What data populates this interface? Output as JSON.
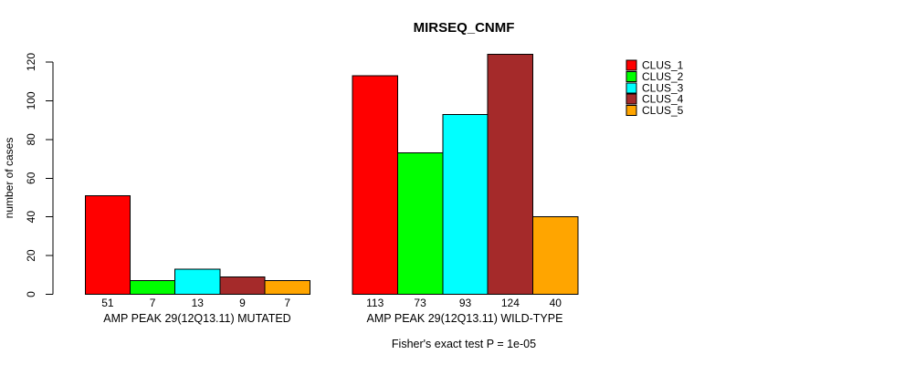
{
  "title": "MIRSEQ_CNMF",
  "chart_data": {
    "type": "bar",
    "title": "MIRSEQ_CNMF",
    "ylabel": "number of cases",
    "xlabel": "",
    "ylim": [
      0,
      120
    ],
    "yticks": [
      0,
      20,
      40,
      60,
      80,
      100,
      120
    ],
    "grid": false,
    "legend_position": "right",
    "categories": [
      "AMP PEAK 29(12Q13.11) MUTATED",
      "AMP PEAK 29(12Q13.11) WILD-TYPE"
    ],
    "series": [
      {
        "name": "CLUS_1",
        "color": "#ff0000",
        "values": [
          51,
          113
        ]
      },
      {
        "name": "CLUS_2",
        "color": "#00ff00",
        "values": [
          7,
          73
        ]
      },
      {
        "name": "CLUS_3",
        "color": "#00ffff",
        "values": [
          13,
          93
        ]
      },
      {
        "name": "CLUS_4",
        "color": "#a52a2a",
        "values": [
          9,
          124
        ]
      },
      {
        "name": "CLUS_5",
        "color": "#ffa500",
        "values": [
          7,
          40
        ]
      }
    ],
    "groups": [
      {
        "label": "AMP PEAK 29(12Q13.11) MUTATED",
        "values": [
          51,
          7,
          13,
          9,
          7
        ]
      },
      {
        "label": "AMP PEAK 29(12Q13.11) WILD-TYPE",
        "values": [
          113,
          73,
          93,
          124,
          40
        ]
      }
    ],
    "bar_value_labels": true,
    "annotation": "Fisher's exact test P = 1e-05",
    "bar_border_color": "#000000"
  }
}
